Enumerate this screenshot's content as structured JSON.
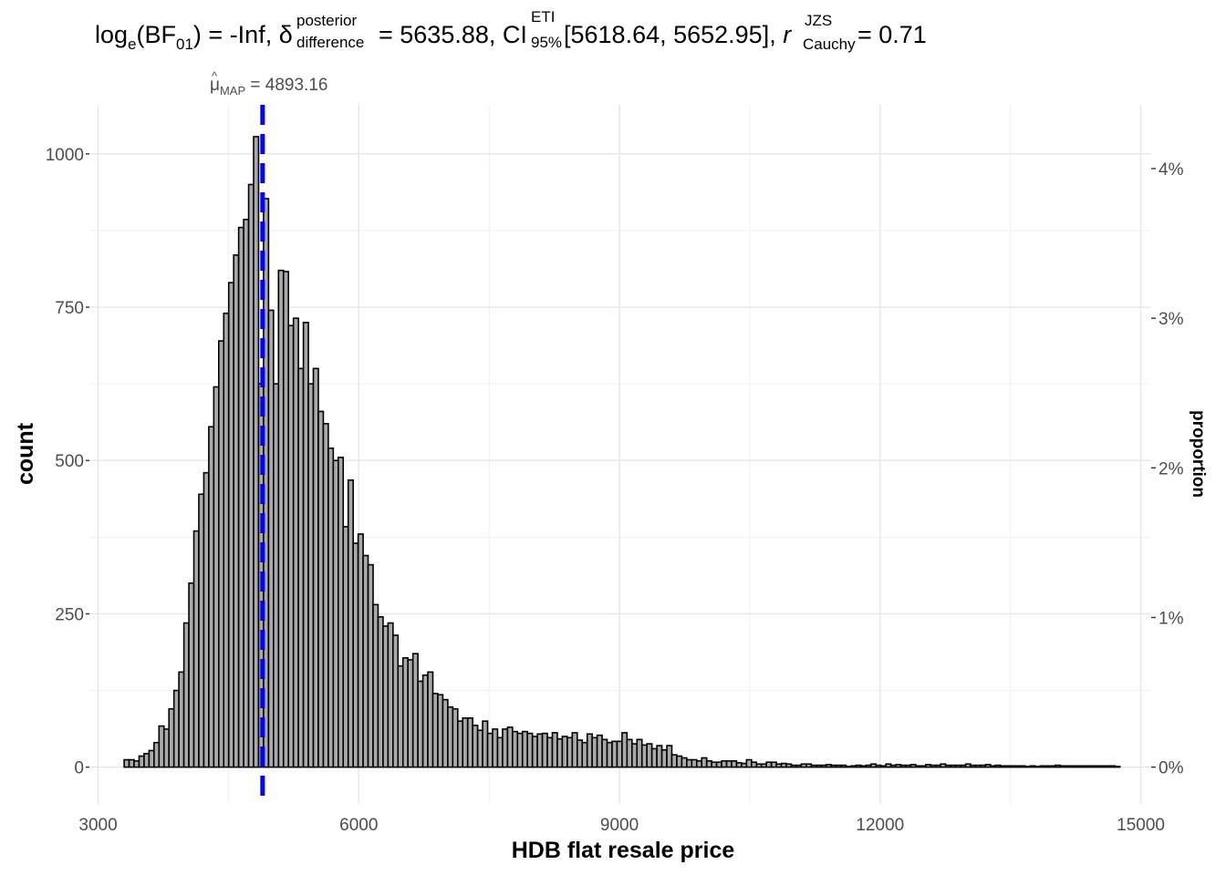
{
  "chart_data": {
    "type": "bar",
    "subtype": "histogram",
    "title": {
      "log": "log",
      "log_sub": "e",
      "bf": "(BF",
      "bf_sub": "01",
      "bf_close": ")",
      "eq1": " = -Inf, ",
      "delta": "δ",
      "delta_sup": "posterior",
      "delta_sub": "difference",
      "eq2": " = 5635.88, CI",
      "ci_sup": "ETI",
      "ci_sub": "95%",
      "ci_vals": " [5618.64, 5652.95], ",
      "r": "r",
      "r_sup": "JZS",
      "r_sub": "Cauchy",
      "eq3": " = 0.71"
    },
    "annotation": {
      "mu": "μ",
      "mu_sub": "MAP",
      "value_text": " = 4893.16",
      "value": 4893.16,
      "line_color": "#0000ff"
    },
    "xlabel": "HDB flat resale price",
    "ylabel": "count",
    "y2label": "proportion",
    "xlim": [
      2900,
      15120
    ],
    "ylim": [
      -60,
      1080
    ],
    "x_ticks": [
      3000,
      6000,
      9000,
      12000,
      15000
    ],
    "x_tick_labels": [
      "3000",
      "6000",
      "9000",
      "12000",
      "15000"
    ],
    "y_ticks": [
      0,
      250,
      500,
      750,
      1000
    ],
    "y_tick_labels": [
      "0",
      "250",
      "500",
      "750",
      "1000"
    ],
    "y2_ticks": [
      0,
      244,
      488,
      732,
      976
    ],
    "y2_tick_labels": [
      "0%",
      "1%",
      "2%",
      "3%",
      "4%"
    ],
    "grid": true,
    "bin_start": 3300,
    "bin_width": 57.3,
    "bar_fill": "#a9a9a9",
    "bar_stroke": "#000000",
    "values": [
      12,
      12,
      10,
      18,
      22,
      27,
      40,
      67,
      62,
      95,
      125,
      155,
      235,
      300,
      385,
      445,
      480,
      555,
      620,
      695,
      740,
      790,
      835,
      880,
      893,
      950,
      1028,
      625,
      927,
      745,
      625,
      810,
      808,
      720,
      732,
      650,
      725,
      625,
      650,
      580,
      560,
      520,
      500,
      505,
      392,
      468,
      365,
      380,
      345,
      330,
      265,
      245,
      230,
      235,
      215,
      165,
      178,
      175,
      185,
      140,
      150,
      155,
      120,
      118,
      110,
      98,
      95,
      75,
      80,
      80,
      68,
      60,
      75,
      55,
      62,
      48,
      62,
      65,
      58,
      55,
      58,
      55,
      50,
      54,
      55,
      48,
      56,
      46,
      50,
      48,
      56,
      44,
      40,
      54,
      48,
      52,
      45,
      40,
      42,
      42,
      56,
      45,
      38,
      45,
      36,
      38,
      30,
      35,
      28,
      35,
      20,
      18,
      15,
      12,
      12,
      10,
      15,
      10,
      8,
      8,
      10,
      10,
      10,
      7,
      6,
      12,
      8,
      5,
      5,
      8,
      8,
      5,
      6,
      5,
      3,
      3,
      5,
      5,
      3,
      3,
      3,
      4,
      3,
      3,
      3,
      1,
      2,
      3,
      2,
      3,
      5,
      3,
      2,
      5,
      3,
      4,
      3,
      3,
      4,
      2,
      2,
      4,
      3,
      3,
      5,
      3,
      3,
      3,
      3,
      5,
      3,
      3,
      3,
      4,
      2,
      3,
      2,
      2,
      2,
      2,
      2,
      1,
      2,
      1,
      2,
      2,
      2,
      3,
      2,
      2,
      2,
      2,
      2,
      2,
      2,
      2,
      2,
      2,
      2,
      1
    ]
  }
}
